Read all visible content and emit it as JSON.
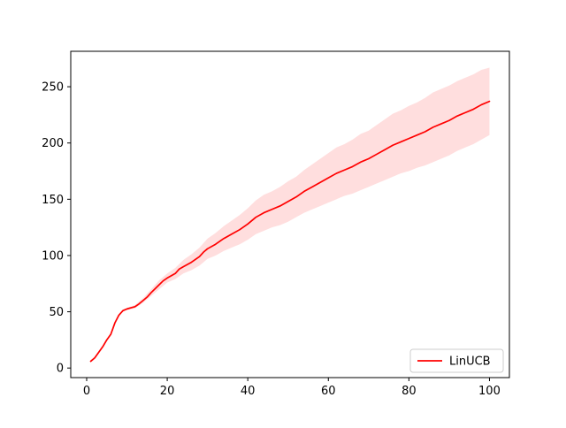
{
  "chart_data": {
    "type": "line",
    "title": "",
    "xlabel": "",
    "ylabel": "",
    "xlim": [
      -3.95,
      104.95
    ],
    "ylim": [
      -8.5,
      281.5
    ],
    "x_ticks": [
      0,
      20,
      40,
      60,
      80,
      100
    ],
    "y_ticks": [
      0,
      50,
      100,
      150,
      200,
      250
    ],
    "grid": false,
    "legend_position": "lower right",
    "series": [
      {
        "name": "LinUCB",
        "color": "#ff0000",
        "band_color": "#ffdede",
        "points": [
          [
            1,
            6
          ],
          [
            2,
            9
          ],
          [
            3,
            14
          ],
          [
            4,
            19
          ],
          [
            5,
            25
          ],
          [
            6,
            30
          ],
          [
            7,
            40
          ],
          [
            8,
            47
          ],
          [
            9,
            51
          ],
          [
            10,
            52.5
          ],
          [
            11,
            53.5
          ],
          [
            12,
            54.5
          ],
          [
            13,
            57
          ],
          [
            14,
            60
          ],
          [
            15,
            63
          ],
          [
            16,
            67
          ],
          [
            17,
            70.5
          ],
          [
            18,
            74
          ],
          [
            19,
            77.5
          ],
          [
            20,
            80
          ],
          [
            22,
            84
          ],
          [
            23,
            88
          ],
          [
            24,
            90
          ],
          [
            25,
            92
          ],
          [
            26,
            94
          ],
          [
            28,
            99
          ],
          [
            29,
            103
          ],
          [
            30,
            106
          ],
          [
            32,
            110
          ],
          [
            34,
            115
          ],
          [
            36,
            119
          ],
          [
            38,
            123
          ],
          [
            40,
            128
          ],
          [
            42,
            134
          ],
          [
            44,
            138
          ],
          [
            46,
            141
          ],
          [
            48,
            144
          ],
          [
            50,
            148
          ],
          [
            52,
            152
          ],
          [
            54,
            157
          ],
          [
            56,
            161
          ],
          [
            58,
            165
          ],
          [
            60,
            169
          ],
          [
            62,
            173
          ],
          [
            64,
            176
          ],
          [
            66,
            179
          ],
          [
            68,
            183
          ],
          [
            70,
            186
          ],
          [
            72,
            190
          ],
          [
            74,
            194
          ],
          [
            76,
            198
          ],
          [
            78,
            201
          ],
          [
            80,
            204
          ],
          [
            82,
            207
          ],
          [
            84,
            210
          ],
          [
            86,
            214
          ],
          [
            88,
            217
          ],
          [
            90,
            220
          ],
          [
            92,
            224
          ],
          [
            94,
            227
          ],
          [
            96,
            230
          ],
          [
            98,
            234
          ],
          [
            100,
            237
          ]
        ],
        "band": [
          [
            1,
            5,
            7
          ],
          [
            2,
            8,
            10
          ],
          [
            3,
            13,
            15
          ],
          [
            4,
            18,
            20
          ],
          [
            5,
            24,
            26
          ],
          [
            6,
            29,
            31
          ],
          [
            7,
            39,
            41
          ],
          [
            8,
            46,
            48
          ],
          [
            9,
            50,
            52
          ],
          [
            10,
            51.5,
            53.5
          ],
          [
            12,
            53,
            56
          ],
          [
            14,
            58,
            62
          ],
          [
            16,
            64,
            70
          ],
          [
            18,
            70,
            78
          ],
          [
            20,
            76,
            84
          ],
          [
            22,
            79,
            89
          ],
          [
            24,
            84,
            96
          ],
          [
            26,
            87,
            101
          ],
          [
            28,
            91,
            107
          ],
          [
            30,
            97,
            115
          ],
          [
            32,
            100,
            120
          ],
          [
            34,
            104,
            126
          ],
          [
            36,
            107,
            131
          ],
          [
            38,
            110,
            136
          ],
          [
            40,
            114,
            142
          ],
          [
            42,
            119,
            149
          ],
          [
            44,
            122,
            154
          ],
          [
            46,
            125,
            157
          ],
          [
            48,
            127,
            161
          ],
          [
            50,
            130,
            166
          ],
          [
            52,
            134,
            170
          ],
          [
            54,
            138,
            176
          ],
          [
            56,
            141,
            181
          ],
          [
            58,
            144,
            186
          ],
          [
            60,
            147,
            191
          ],
          [
            62,
            150,
            196
          ],
          [
            64,
            153,
            199
          ],
          [
            66,
            155,
            203
          ],
          [
            68,
            158,
            208
          ],
          [
            70,
            161,
            211
          ],
          [
            72,
            164,
            216
          ],
          [
            74,
            167,
            221
          ],
          [
            76,
            170,
            226
          ],
          [
            78,
            173,
            229
          ],
          [
            80,
            175,
            233
          ],
          [
            82,
            178,
            236
          ],
          [
            84,
            180,
            240
          ],
          [
            86,
            183,
            245
          ],
          [
            88,
            186,
            248
          ],
          [
            90,
            189,
            251
          ],
          [
            92,
            193,
            255
          ],
          [
            94,
            196,
            258
          ],
          [
            96,
            199,
            261
          ],
          [
            98,
            203,
            265
          ],
          [
            100,
            207,
            267
          ]
        ]
      }
    ]
  }
}
